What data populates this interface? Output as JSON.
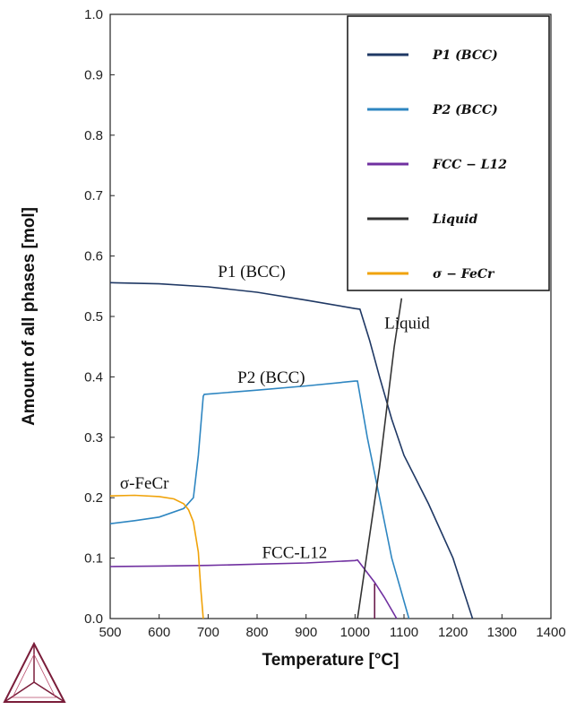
{
  "chart_data": {
    "type": "line",
    "xlabel": "Temperature [°C]",
    "ylabel": "Amount of all phases [mol]",
    "xlim": [
      500,
      1400
    ],
    "ylim": [
      0,
      1.0
    ],
    "x_ticks": [
      "500",
      "600",
      "700",
      "800",
      "900",
      "1000",
      "1100",
      "1200",
      "1300",
      "1400"
    ],
    "y_ticks": [
      "0.0",
      "0.1",
      "0.2",
      "0.3",
      "0.4",
      "0.5",
      "0.6",
      "0.7",
      "0.8",
      "0.9",
      "1.0"
    ],
    "grid": false,
    "legend_position": "top-right",
    "legend": [
      {
        "label": "P1 (BCC)",
        "color": "#1f3864"
      },
      {
        "label": "P2 (BCC)",
        "color": "#2e86c1"
      },
      {
        "label": "FCC − L12",
        "color": "#7030a0"
      },
      {
        "label": "Liquid",
        "color": "#333333"
      },
      {
        "label": "σ − FeCr",
        "color": "#f0a30a"
      }
    ],
    "annotations": [
      {
        "text": "P1 (BCC)",
        "x": 720,
        "y": 0.565
      },
      {
        "text": "P2 (BCC)",
        "x": 760,
        "y": 0.39
      },
      {
        "text": "σ-FeCr",
        "x": 520,
        "y": 0.215
      },
      {
        "text": "FCC-L12",
        "x": 810,
        "y": 0.1
      },
      {
        "text": "Liquid",
        "x": 1060,
        "y": 0.48
      }
    ],
    "series": [
      {
        "name": "P1 (BCC)",
        "color": "#1f3864",
        "x": [
          500,
          600,
          700,
          800,
          900,
          1000,
          1010,
          1030,
          1050,
          1075,
          1100,
          1150,
          1200,
          1240
        ],
        "y": [
          0.556,
          0.554,
          0.549,
          0.54,
          0.527,
          0.513,
          0.512,
          0.46,
          0.4,
          0.33,
          0.27,
          0.19,
          0.1,
          0.0
        ]
      },
      {
        "name": "P2 (BCC)",
        "color": "#2e86c1",
        "x": [
          500,
          550,
          600,
          650,
          670,
          680,
          690,
          692,
          800,
          900,
          1000,
          1005,
          1025,
          1050,
          1075,
          1110
        ],
        "y": [
          0.157,
          0.162,
          0.168,
          0.182,
          0.2,
          0.27,
          0.368,
          0.371,
          0.378,
          0.385,
          0.393,
          0.393,
          0.3,
          0.2,
          0.1,
          0.0
        ]
      },
      {
        "name": "FCC − L12",
        "color": "#7030a0",
        "x": [
          500,
          600,
          700,
          800,
          900,
          1000,
          1005,
          1040,
          1060,
          1085
        ],
        "y": [
          0.086,
          0.087,
          0.088,
          0.09,
          0.092,
          0.096,
          0.097,
          0.06,
          0.035,
          0.0
        ]
      },
      {
        "name": "Liquid",
        "color": "#333333",
        "x": [
          1005,
          1050,
          1080,
          1095
        ],
        "y": [
          0.0,
          0.25,
          0.45,
          0.53
        ]
      },
      {
        "name": "σ − FeCr",
        "color": "#f0a30a",
        "x": [
          500,
          550,
          600,
          630,
          650,
          660,
          670,
          680,
          685,
          690
        ],
        "y": [
          0.203,
          0.204,
          0.202,
          0.198,
          0.19,
          0.18,
          0.16,
          0.11,
          0.05,
          0.0
        ]
      },
      {
        "name": "",
        "color": "#6b1e4e",
        "x": [
          1040,
          1040
        ],
        "y": [
          0.0,
          0.058
        ]
      }
    ]
  },
  "logo": {
    "name": "thermo-calc-logo"
  }
}
